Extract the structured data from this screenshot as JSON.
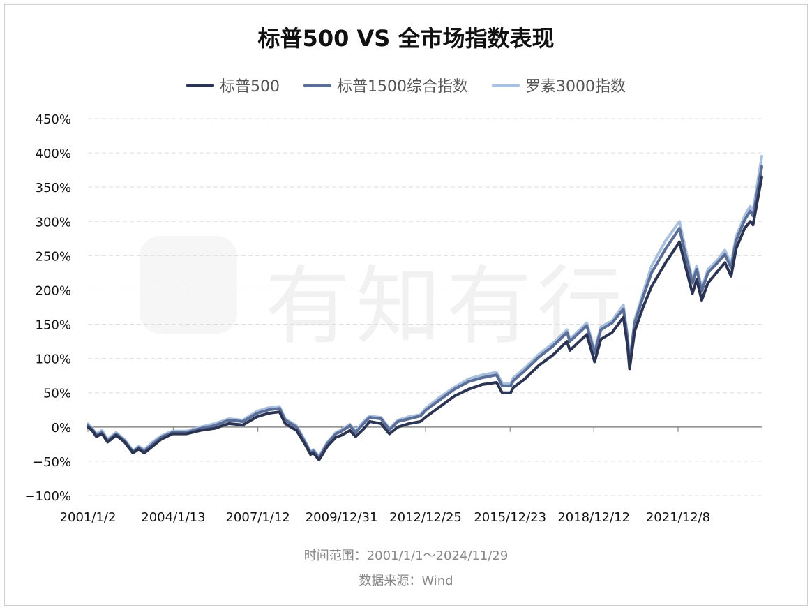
{
  "title": "标普500 VS 全市场指数表现",
  "footer": {
    "range": "时间范围：2001/1/1～2024/11/29",
    "source": "数据来源：Wind"
  },
  "watermark": {
    "text": "有知有行"
  },
  "colors": {
    "sp500": "#2b3452",
    "sp1500": "#5a6e98",
    "russell3000": "#a9c0df",
    "grid": "#dddddd",
    "axis": "#888888"
  },
  "chart_data": {
    "type": "line",
    "title": "标普500 VS 全市场指数表现",
    "xlabel": "",
    "ylabel": "",
    "ylim": [
      -100,
      450
    ],
    "ytick_labels": [
      "450%",
      "400%",
      "350%",
      "300%",
      "250%",
      "200%",
      "150%",
      "100%",
      "50%",
      "0%",
      "−50%",
      "−100%"
    ],
    "ytick_values": [
      450,
      400,
      350,
      300,
      250,
      200,
      150,
      100,
      50,
      0,
      -50,
      -100
    ],
    "xtick_labels": [
      "2001/1/2",
      "2004/1/13",
      "2007/1/12",
      "2009/12/31",
      "2012/12/25",
      "2015/12/23",
      "2018/12/12",
      "2021/12/8"
    ],
    "xtick_values": [
      2001.0,
      2004.03,
      2007.03,
      2010.0,
      2012.98,
      2015.98,
      2018.95,
      2021.94
    ],
    "xlim": [
      2001.0,
      2024.91
    ],
    "grid": true,
    "legend_position": "top-center",
    "series": [
      {
        "name": "标普500",
        "x": [
          2001.0,
          2001.15,
          2001.3,
          2001.5,
          2001.7,
          2002.0,
          2002.3,
          2002.6,
          2002.8,
          2003.0,
          2003.3,
          2003.6,
          2004.0,
          2004.5,
          2005.0,
          2005.5,
          2006.0,
          2006.5,
          2007.0,
          2007.4,
          2007.8,
          2008.0,
          2008.4,
          2008.7,
          2008.9,
          2009.0,
          2009.2,
          2009.5,
          2009.8,
          2010.0,
          2010.3,
          2010.5,
          2010.8,
          2011.0,
          2011.4,
          2011.7,
          2012.0,
          2012.4,
          2012.8,
          2013.0,
          2013.5,
          2014.0,
          2014.5,
          2015.0,
          2015.5,
          2015.7,
          2016.0,
          2016.1,
          2016.5,
          2017.0,
          2017.5,
          2018.0,
          2018.1,
          2018.7,
          2018.98,
          2019.2,
          2019.6,
          2020.0,
          2020.15,
          2020.22,
          2020.4,
          2020.7,
          2021.0,
          2021.5,
          2021.99,
          2022.2,
          2022.45,
          2022.6,
          2022.78,
          2023.0,
          2023.3,
          2023.6,
          2023.82,
          2024.0,
          2024.3,
          2024.5,
          2024.6,
          2024.91
        ],
        "values": [
          0,
          -5,
          -14,
          -10,
          -22,
          -12,
          -22,
          -38,
          -32,
          -38,
          -28,
          -18,
          -10,
          -10,
          -5,
          -2,
          5,
          3,
          15,
          20,
          22,
          5,
          -5,
          -25,
          -40,
          -38,
          -48,
          -28,
          -15,
          -12,
          -5,
          -14,
          -2,
          8,
          5,
          -10,
          0,
          5,
          8,
          15,
          30,
          45,
          55,
          62,
          65,
          50,
          50,
          58,
          70,
          90,
          105,
          125,
          112,
          135,
          95,
          128,
          138,
          160,
          118,
          85,
          140,
          175,
          205,
          240,
          270,
          235,
          195,
          215,
          185,
          210,
          225,
          240,
          220,
          260,
          290,
          300,
          295,
          365
        ]
      },
      {
        "name": "标普1500综合指数",
        "x": [
          2001.0,
          2001.15,
          2001.3,
          2001.5,
          2001.7,
          2002.0,
          2002.3,
          2002.6,
          2002.8,
          2003.0,
          2003.3,
          2003.6,
          2004.0,
          2004.5,
          2005.0,
          2005.5,
          2006.0,
          2006.5,
          2007.0,
          2007.4,
          2007.8,
          2008.0,
          2008.4,
          2008.7,
          2008.9,
          2009.0,
          2009.2,
          2009.5,
          2009.8,
          2010.0,
          2010.3,
          2010.5,
          2010.8,
          2011.0,
          2011.4,
          2011.7,
          2012.0,
          2012.4,
          2012.8,
          2013.0,
          2013.5,
          2014.0,
          2014.5,
          2015.0,
          2015.5,
          2015.7,
          2016.0,
          2016.1,
          2016.5,
          2017.0,
          2017.5,
          2018.0,
          2018.1,
          2018.7,
          2018.98,
          2019.2,
          2019.6,
          2020.0,
          2020.15,
          2020.22,
          2020.4,
          2020.7,
          2021.0,
          2021.5,
          2021.99,
          2022.2,
          2022.45,
          2022.6,
          2022.78,
          2023.0,
          2023.3,
          2023.6,
          2023.82,
          2024.0,
          2024.3,
          2024.5,
          2024.6,
          2024.91
        ],
        "values": [
          2,
          -3,
          -12,
          -8,
          -20,
          -10,
          -20,
          -36,
          -30,
          -35,
          -25,
          -15,
          -8,
          -8,
          -2,
          2,
          10,
          8,
          20,
          25,
          27,
          10,
          0,
          -22,
          -38,
          -35,
          -45,
          -24,
          -10,
          -6,
          2,
          -8,
          6,
          14,
          12,
          -4,
          8,
          12,
          16,
          25,
          40,
          55,
          66,
          72,
          76,
          60,
          60,
          68,
          82,
          102,
          118,
          138,
          125,
          148,
          108,
          142,
          152,
          172,
          128,
          92,
          152,
          190,
          225,
          260,
          290,
          252,
          210,
          230,
          198,
          225,
          238,
          252,
          232,
          272,
          302,
          315,
          308,
          380
        ]
      },
      {
        "name": "罗素3000指数",
        "x": [
          2001.0,
          2001.15,
          2001.3,
          2001.5,
          2001.7,
          2002.0,
          2002.3,
          2002.6,
          2002.8,
          2003.0,
          2003.3,
          2003.6,
          2004.0,
          2004.5,
          2005.0,
          2005.5,
          2006.0,
          2006.5,
          2007.0,
          2007.4,
          2007.8,
          2008.0,
          2008.4,
          2008.7,
          2008.9,
          2009.0,
          2009.2,
          2009.5,
          2009.8,
          2010.0,
          2010.3,
          2010.5,
          2010.8,
          2011.0,
          2011.4,
          2011.7,
          2012.0,
          2012.4,
          2012.8,
          2013.0,
          2013.5,
          2014.0,
          2014.5,
          2015.0,
          2015.5,
          2015.7,
          2016.0,
          2016.1,
          2016.5,
          2017.0,
          2017.5,
          2018.0,
          2018.1,
          2018.7,
          2018.98,
          2019.2,
          2019.6,
          2020.0,
          2020.15,
          2020.22,
          2020.4,
          2020.7,
          2021.0,
          2021.5,
          2021.99,
          2022.2,
          2022.45,
          2022.6,
          2022.78,
          2023.0,
          2023.3,
          2023.6,
          2023.82,
          2024.0,
          2024.3,
          2024.5,
          2024.6,
          2024.91
        ],
        "values": [
          5,
          -2,
          -10,
          -5,
          -18,
          -8,
          -18,
          -35,
          -28,
          -33,
          -22,
          -13,
          -6,
          -6,
          0,
          5,
          12,
          10,
          23,
          28,
          30,
          12,
          2,
          -20,
          -36,
          -33,
          -43,
          -22,
          -8,
          -4,
          4,
          -6,
          9,
          16,
          14,
          -2,
          10,
          15,
          18,
          28,
          44,
          58,
          70,
          76,
          80,
          64,
          63,
          72,
          86,
          106,
          122,
          142,
          128,
          152,
          112,
          146,
          155,
          178,
          132,
          95,
          156,
          196,
          235,
          272,
          300,
          260,
          215,
          235,
          202,
          230,
          242,
          258,
          238,
          278,
          308,
          322,
          315,
          395
        ]
      }
    ]
  }
}
